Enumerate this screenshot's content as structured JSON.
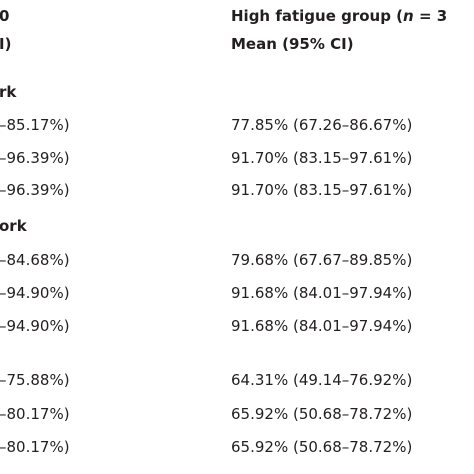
{
  "header": {
    "left_line1": "0",
    "left_line2": "I)",
    "right_line1_prefix": "High fatigue group (",
    "right_line1_n": "n",
    "right_line1_suffix": " = 3",
    "right_line2": "Mean (95% CI)"
  },
  "rows": [
    {
      "label": "rk"
    },
    {
      "left": "–85.17%)",
      "right": "77.85% (67.26–86.67%)"
    },
    {
      "left": "–96.39%)",
      "right": "91.70% (83.15–97.61%)"
    },
    {
      "left": "–96.39%)",
      "right": "91.70% (83.15–97.61%)"
    },
    {
      "label": "ork"
    },
    {
      "left": "–84.68%)",
      "right": "79.68% (67.67–89.85%)"
    },
    {
      "left": "–94.90%)",
      "right": "91.68% (84.01–97.94%)"
    },
    {
      "left": "–94.90%)",
      "right": "91.68% (84.01–97.94%)"
    },
    {
      "left": "–75.88%)",
      "right": "64.31% (49.14–76.92%)"
    },
    {
      "left": "–80.17%)",
      "right": "65.92% (50.68–78.72%)"
    },
    {
      "left": "–80.17%)",
      "right": "65.92% (50.68–78.72%)"
    }
  ]
}
